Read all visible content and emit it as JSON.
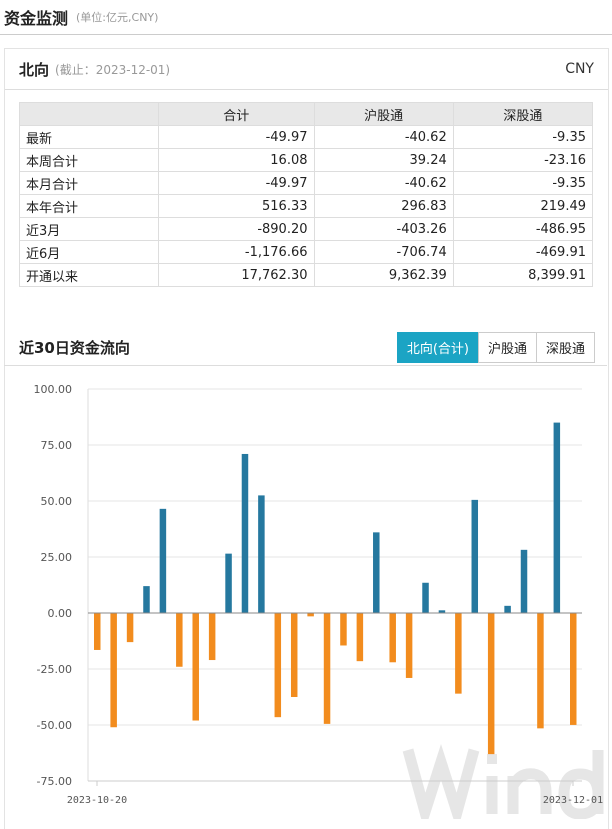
{
  "header": {
    "title": "资金监测",
    "unit": "(单位:亿元,CNY)"
  },
  "card": {
    "title": "北向",
    "date": "(截止：2023-12-01)",
    "currency": "CNY"
  },
  "table": {
    "columns": [
      "",
      "合计",
      "沪股通",
      "深股通"
    ],
    "rows": [
      [
        "最新",
        "-49.97",
        "-40.62",
        "-9.35"
      ],
      [
        "本周合计",
        "16.08",
        "39.24",
        "-23.16"
      ],
      [
        "本月合计",
        "-49.97",
        "-40.62",
        "-9.35"
      ],
      [
        "本年合计",
        "516.33",
        "296.83",
        "219.49"
      ],
      [
        "近3月",
        "-890.20",
        "-403.26",
        "-486.95"
      ],
      [
        "近6月",
        "-1,176.66",
        "-706.74",
        "-469.91"
      ],
      [
        "开通以来",
        "17,762.30",
        "9,362.39",
        "8,399.91"
      ]
    ]
  },
  "section": {
    "title": "近30日资金流向",
    "tabs": [
      {
        "label": "北向(合计)",
        "active": true
      },
      {
        "label": "沪股通",
        "active": false
      },
      {
        "label": "深股通",
        "active": false
      }
    ]
  },
  "colors": {
    "positive": "#25789f",
    "negative": "#f28c1e",
    "accent": "#1ba4c4"
  },
  "chart_data": {
    "type": "bar",
    "ylim": [
      -75,
      100
    ],
    "yticks": [
      "100.00",
      "75.00",
      "50.00",
      "25.00",
      "0.00",
      "-25.00",
      "-50.00",
      "-75.00"
    ],
    "xtick_labels": [
      "2023-10-20",
      "2023-12-01"
    ],
    "grid": true,
    "values": [
      -16.5,
      -51,
      -13,
      12,
      46.5,
      -24,
      -48,
      -21,
      26.5,
      71,
      52.5,
      -46.5,
      -37.5,
      -1.5,
      -49.5,
      -14.5,
      -21.5,
      36,
      -22,
      -29,
      13.5,
      1.2,
      -36,
      50.5,
      -63,
      3.2,
      28.2,
      -51.5,
      85,
      -49.97
    ],
    "watermark": "Wind"
  }
}
